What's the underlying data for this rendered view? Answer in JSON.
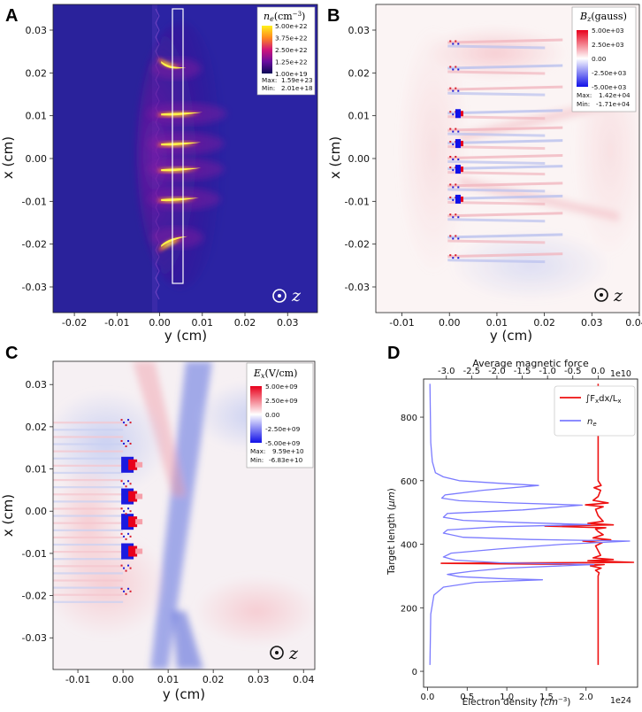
{
  "chart_data": [
    {
      "panel": "A",
      "type": "heatmap",
      "quantity": "electron density n_e",
      "colorbar": {
        "title_sym": "n",
        "title_sub": "e",
        "title_unit": "(cm",
        "title_exp": "−3",
        "title_close": ")",
        "ticks": [
          "5.00e+22",
          "3.75e+22",
          "2.50e+22",
          "1.25e+22",
          "1.00e+19"
        ],
        "max_label": "Max:",
        "max": "1.59e+23",
        "min_label": "Min:",
        "min": "2.01e+18",
        "colors": [
          "#fff21a",
          "#ff8a1e",
          "#d0167a",
          "#6a0e9e",
          "#0c0a57"
        ]
      },
      "xlabel": "y (cm)",
      "ylabel": "x (cm)",
      "xticks": [
        "-0.02",
        "-0.01",
        "0.00",
        "0.01",
        "0.02",
        "0.03"
      ],
      "yticks": [
        "0.03",
        "0.02",
        "0.01",
        "0.00",
        "-0.01",
        "-0.02",
        "-0.03"
      ],
      "xlim": [
        -0.025,
        0.037
      ],
      "ylim": [
        -0.036,
        0.036
      ],
      "jets_x_cm": [
        0.021,
        0.0105,
        0.0035,
        -0.0025,
        -0.0095,
        -0.0185
      ],
      "annotation": "z"
    },
    {
      "panel": "B",
      "type": "heatmap",
      "quantity": "magnetic field B_z",
      "colorbar": {
        "title_sym": "B",
        "title_sub": "z",
        "title_unit": "(gauss)",
        "ticks": [
          "5.00e+03",
          "2.50e+03",
          "0.00",
          "-2.50e+03",
          "-5.00e+03"
        ],
        "max_label": "Max:",
        "max": "1.42e+04",
        "min_label": "Min:",
        "min": "-1.71e+04",
        "colors": [
          "#e8001c",
          "#ffffff",
          "#1010e8"
        ]
      },
      "xlabel": "y (cm)",
      "ylabel": "x (cm)",
      "xticks": [
        "-0.01",
        "0.00",
        "0.01",
        "0.02",
        "0.03",
        "0.040"
      ],
      "yticks": [
        "0.03",
        "0.02",
        "0.01",
        "0.00",
        "-0.01",
        "-0.02",
        "-0.03"
      ],
      "xlim": [
        -0.0155,
        0.04
      ],
      "ylim": [
        -0.036,
        0.036
      ],
      "annotation": "z"
    },
    {
      "panel": "C",
      "type": "heatmap",
      "quantity": "electric field E_x",
      "colorbar": {
        "title_sym": "E",
        "title_sub": "x",
        "title_unit": "(V/cm)",
        "ticks": [
          "5.00e+09",
          "2.50e+09",
          "0.00",
          "-2.50e+09",
          "-5.00e+09"
        ],
        "max_label": "Max:",
        "max": "9.59e+10",
        "min_label": "Min:",
        "min": "-6.83e+10",
        "colors": [
          "#e8001c",
          "#ffffff",
          "#1010e8"
        ]
      },
      "xlabel": "y (cm)",
      "ylabel": "x (cm)",
      "xticks": [
        "-0.01",
        "0.00",
        "0.01",
        "0.02",
        "0.03",
        "0.04"
      ],
      "yticks": [
        "0.03",
        "0.02",
        "0.01",
        "0.00",
        "-0.01",
        "-0.02",
        "-0.03"
      ],
      "xlim": [
        -0.0155,
        0.0425
      ],
      "ylim": [
        -0.0375,
        0.0355
      ],
      "annotation": "z"
    },
    {
      "panel": "D",
      "type": "line",
      "top_xlabel": "Average magnetic force",
      "top_xticks": [
        "-3.0",
        "-2.5",
        "-2.0",
        "-1.5",
        "-1.0",
        "-0.5",
        "0.0"
      ],
      "top_exponent": "1e10",
      "bottom_xlabel": "Electron density",
      "bottom_xlabel_unit": "(cm",
      "bottom_xlabel_exp": "−3",
      "bottom_xlabel_close": ")",
      "bottom_xticks": [
        "0.0",
        "0.5",
        "1.0",
        "1.5",
        "2.0"
      ],
      "bottom_exponent": "1e24",
      "ylabel": "Target length (",
      "ylabel_unit": "μm",
      "ylabel_close": ")",
      "yticks": [
        "0",
        "200",
        "400",
        "600",
        "800"
      ],
      "ylim": [
        920,
        -50
      ],
      "x_bottom_lim": [
        -0.05,
        2.65
      ],
      "x_top_lim": [
        -3.45,
        0.78
      ],
      "legend": {
        "force_label": "∫F",
        "force_sub": "x",
        "force_rest": "dx/L",
        "force_sub2": "x",
        "ne_label": "n",
        "ne_sub": "e"
      },
      "series": [
        {
          "name": "∫Fx dx/Lx",
          "color": "#ee1111",
          "axis": "top",
          "points": [
            [
              0.0,
              20
            ],
            [
              0.0,
              300
            ],
            [
              0.02,
              310
            ],
            [
              -0.05,
              318
            ],
            [
              0.06,
              325
            ],
            [
              -0.15,
              332
            ],
            [
              0.12,
              336
            ],
            [
              -3.1,
              340
            ],
            [
              0.7,
              343
            ],
            [
              -0.2,
              348
            ],
            [
              0.3,
              352
            ],
            [
              -0.1,
              357
            ],
            [
              0.05,
              365
            ],
            [
              0.0,
              380
            ],
            [
              -0.05,
              395
            ],
            [
              0.08,
              405
            ],
            [
              -0.3,
              410
            ],
            [
              0.25,
              414
            ],
            [
              -0.1,
              420
            ],
            [
              0.1,
              430
            ],
            [
              0.0,
              440
            ],
            [
              -0.05,
              448
            ],
            [
              0.15,
              452
            ],
            [
              -1.05,
              457
            ],
            [
              0.3,
              461
            ],
            [
              -0.2,
              466
            ],
            [
              0.1,
              472
            ],
            [
              0.0,
              490
            ],
            [
              -0.05,
              510
            ],
            [
              0.1,
              518
            ],
            [
              -0.25,
              524
            ],
            [
              0.2,
              530
            ],
            [
              -0.1,
              538
            ],
            [
              0.0,
              550
            ],
            [
              0.05,
              570
            ],
            [
              -0.08,
              578
            ],
            [
              0.06,
              585
            ],
            [
              0.0,
              600
            ],
            [
              0.0,
              905
            ]
          ]
        },
        {
          "name": "ne",
          "color": "#7b7bff",
          "axis": "bottom",
          "points": [
            [
              0.03,
              20
            ],
            [
              0.04,
              180
            ],
            [
              0.08,
              240
            ],
            [
              0.2,
              265
            ],
            [
              0.6,
              280
            ],
            [
              1.45,
              288
            ],
            [
              0.9,
              292
            ],
            [
              0.4,
              298
            ],
            [
              0.25,
              305
            ],
            [
              0.55,
              315
            ],
            [
              1.0,
              325
            ],
            [
              2.1,
              336
            ],
            [
              0.9,
              342
            ],
            [
              0.35,
              350
            ],
            [
              0.2,
              360
            ],
            [
              0.3,
              372
            ],
            [
              0.9,
              385
            ],
            [
              1.7,
              400
            ],
            [
              2.55,
              410
            ],
            [
              1.3,
              415
            ],
            [
              0.45,
              422
            ],
            [
              0.2,
              435
            ],
            [
              0.25,
              445
            ],
            [
              0.9,
              455
            ],
            [
              2.05,
              462
            ],
            [
              1.2,
              468
            ],
            [
              0.45,
              475
            ],
            [
              0.2,
              485
            ],
            [
              0.25,
              497
            ],
            [
              1.2,
              508
            ],
            [
              1.95,
              523
            ],
            [
              1.05,
              530
            ],
            [
              0.4,
              537
            ],
            [
              0.18,
              545
            ],
            [
              0.22,
              555
            ],
            [
              0.7,
              570
            ],
            [
              1.4,
              585
            ],
            [
              0.9,
              592
            ],
            [
              0.4,
              600
            ],
            [
              0.2,
              612
            ],
            [
              0.1,
              625
            ],
            [
              0.06,
              660
            ],
            [
              0.04,
              720
            ],
            [
              0.03,
              905
            ]
          ]
        }
      ]
    }
  ],
  "labels": {
    "A": "A",
    "B": "B",
    "C": "C",
    "D": "D"
  }
}
